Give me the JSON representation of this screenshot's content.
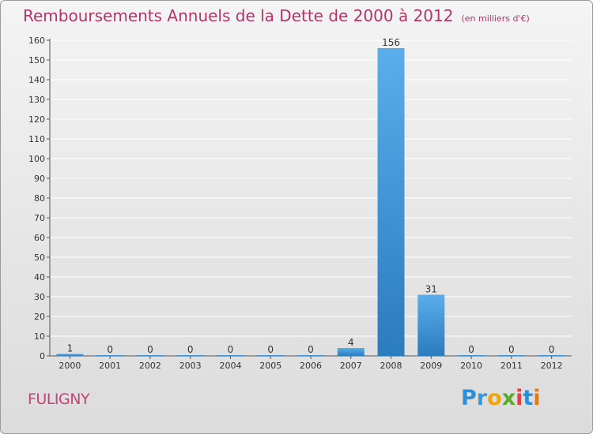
{
  "page": {
    "title": "Remboursements Annuels de la Dette de 2000 à 2012",
    "subtitle": "(en milliers d'€)",
    "commune": "FULIGNY"
  },
  "brand": {
    "letters": [
      "P",
      "r",
      "o",
      "x",
      "i",
      "t",
      "i"
    ],
    "colors": [
      "#2f8fd6",
      "#3a9ad9",
      "#f0a30a",
      "#5aab2a",
      "#e04040",
      "#2f8fd6",
      "#e07b1a"
    ]
  },
  "chart_data": {
    "type": "bar",
    "categories": [
      "2000",
      "2001",
      "2002",
      "2003",
      "2004",
      "2005",
      "2006",
      "2007",
      "2008",
      "2009",
      "2010",
      "2011",
      "2012"
    ],
    "values": [
      1,
      0,
      0,
      0,
      0,
      0,
      0,
      4,
      156,
      31,
      0,
      0,
      0
    ],
    "data_labels": [
      "1",
      "0",
      "0",
      "0",
      "0",
      "0",
      "0",
      "4",
      "156",
      "31",
      "0",
      "0",
      "0"
    ],
    "ylim": [
      0,
      160
    ],
    "yticks": [
      0,
      10,
      20,
      30,
      40,
      50,
      60,
      70,
      80,
      90,
      100,
      110,
      120,
      130,
      140,
      150,
      160
    ],
    "grid": true,
    "bar_color": "#3f97dd",
    "bar_color_dark": "#2b7bbf",
    "title_color": "#b5336b"
  }
}
